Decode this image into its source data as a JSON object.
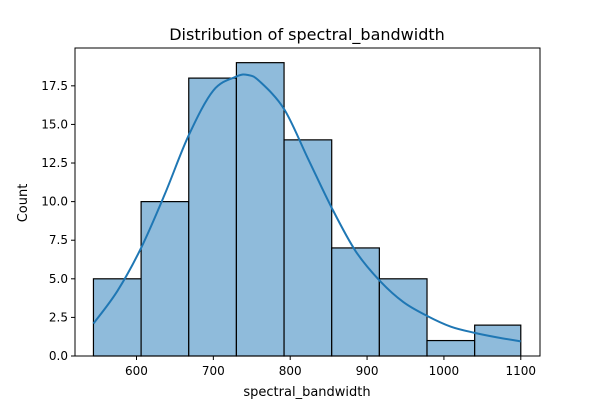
{
  "chart_data": {
    "type": "bar",
    "title": "Distribution of spectral_bandwidth",
    "xlabel": "spectral_bandwidth",
    "ylabel": "Count",
    "bin_edges": [
      544,
      606,
      668,
      730,
      792,
      854,
      916,
      978,
      1040,
      1100
    ],
    "values": [
      5,
      10,
      18,
      19,
      14,
      7,
      5,
      1,
      2
    ],
    "xlim": [
      520,
      1125
    ],
    "ylim": [
      0,
      19.95
    ],
    "xticks": [
      600,
      700,
      800,
      900,
      1000,
      1100
    ],
    "yticks": [
      0.0,
      2.5,
      5.0,
      7.5,
      10.0,
      12.5,
      15.0,
      17.5
    ],
    "ytick_labels": [
      "0.0",
      "2.5",
      "5.0",
      "7.5",
      "10.0",
      "12.5",
      "15.0",
      "17.5"
    ],
    "kde": {
      "x": [
        544,
        575,
        606,
        637,
        668,
        700,
        730,
        745,
        760,
        792,
        823,
        854,
        885,
        916,
        947,
        978,
        1009,
        1040,
        1070,
        1100
      ],
      "y": [
        2.1,
        4.2,
        7.0,
        10.5,
        14.3,
        17.2,
        18.1,
        18.2,
        17.8,
        16.0,
        12.8,
        9.6,
        6.8,
        4.9,
        3.5,
        2.6,
        1.9,
        1.5,
        1.2,
        0.95
      ]
    },
    "grid": false,
    "legend": false,
    "colors": {
      "bar_fill": "#8fbbdb",
      "bar_edge": "#000000",
      "kde_line": "#1f77b4"
    }
  }
}
